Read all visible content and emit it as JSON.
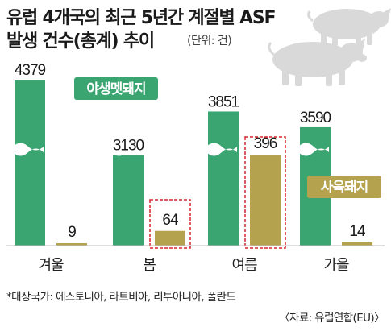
{
  "header": {
    "title_line1": "유럽 4개국의 최근 5년간 계절별 ASF",
    "title_line2": "발생 건수(총계) 추이",
    "unit": "(단위: 건)"
  },
  "footer": {
    "note": "*대상국가: 에스토니아, 라트비아, 리투아니아, 폴란드",
    "source": "〈자료: 유럽연합(EU)〉"
  },
  "colors": {
    "wild_boar": "#3aa571",
    "domestic_pig": "#b5a24e",
    "label_wild_boar": "#3aa571",
    "label_domestic_pig": "#b5a24e",
    "pig_silhouette": "#d9d9d9",
    "highlight_box": "#d9232e"
  },
  "chart_data": {
    "type": "bar",
    "title": "유럽 4개국의 최근 5년간 계절별 ASF 발생 건수(총계) 추이",
    "unit": "(단위: 건)",
    "categories": [
      "겨울",
      "봄",
      "여름",
      "가을"
    ],
    "series": [
      {
        "name": "야생멧돼지",
        "values": [
          4379,
          3130,
          3851,
          3590
        ]
      },
      {
        "name": "사육돼지",
        "values": [
          9,
          64,
          396,
          14
        ]
      }
    ],
    "axis_break": true,
    "highlighted": [
      {
        "series": 1,
        "category": 1
      },
      {
        "series": 1,
        "category": 2
      }
    ],
    "grid": false,
    "legend": "inline-labels"
  }
}
